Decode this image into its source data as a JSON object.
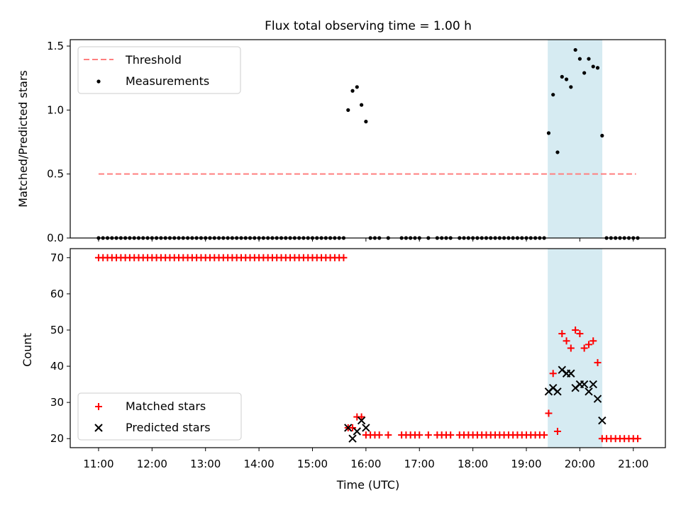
{
  "title": "Flux total observing time = 1.00 h",
  "colors": {
    "threshold": "#ff7f7f",
    "measurement": "#000000",
    "matched": "#ff0000",
    "predicted": "#000000",
    "span_fill": "#add8e6"
  },
  "chart_data": [
    {
      "type": "scatter",
      "panel": "top",
      "ylabel": "Matched/Predicted stars",
      "xlabel": "",
      "ylim": [
        0,
        1.55
      ],
      "yticks": [
        0.0,
        0.5,
        1.0,
        1.5
      ],
      "ytick_labels": [
        "0.0",
        "0.5",
        "1.0",
        "1.5"
      ],
      "xlim_hours": [
        10.47,
        21.6
      ],
      "highlight_span_hours": [
        19.4,
        20.42
      ],
      "legend_position": "upper-left",
      "threshold": {
        "label": "Threshold",
        "value": 0.5,
        "x_range_hours": [
          11.0,
          21.05
        ]
      },
      "measurements": {
        "label": "Measurements",
        "x": [
          11.0,
          11.083,
          11.167,
          11.25,
          11.333,
          11.417,
          11.5,
          11.583,
          11.667,
          11.75,
          11.833,
          11.917,
          12.0,
          12.083,
          12.167,
          12.25,
          12.333,
          12.417,
          12.5,
          12.583,
          12.667,
          12.75,
          12.833,
          12.917,
          13.0,
          13.083,
          13.167,
          13.25,
          13.333,
          13.417,
          13.5,
          13.583,
          13.667,
          13.75,
          13.833,
          13.917,
          14.0,
          14.083,
          14.167,
          14.25,
          14.333,
          14.417,
          14.5,
          14.583,
          14.667,
          14.75,
          14.833,
          14.917,
          15.0,
          15.083,
          15.167,
          15.25,
          15.333,
          15.417,
          15.5,
          15.583,
          15.667,
          15.75,
          15.833,
          15.917,
          16.0,
          16.083,
          16.167,
          16.25,
          16.417,
          16.667,
          16.75,
          16.833,
          16.917,
          17.0,
          17.167,
          17.333,
          17.417,
          17.5,
          17.583,
          17.75,
          17.833,
          17.917,
          18.0,
          18.083,
          18.167,
          18.25,
          18.333,
          18.417,
          18.5,
          18.583,
          18.667,
          18.75,
          18.833,
          18.917,
          19.0,
          19.083,
          19.167,
          19.25,
          19.333,
          19.417,
          19.5,
          19.583,
          19.667,
          19.75,
          19.833,
          19.917,
          20.0,
          20.083,
          20.167,
          20.25,
          20.333,
          20.417,
          20.5,
          20.583,
          20.667,
          20.75,
          20.833,
          20.917,
          21.0,
          21.083
        ],
        "y": [
          0,
          0,
          0,
          0,
          0,
          0,
          0,
          0,
          0,
          0,
          0,
          0,
          0,
          0,
          0,
          0,
          0,
          0,
          0,
          0,
          0,
          0,
          0,
          0,
          0,
          0,
          0,
          0,
          0,
          0,
          0,
          0,
          0,
          0,
          0,
          0,
          0,
          0,
          0,
          0,
          0,
          0,
          0,
          0,
          0,
          0,
          0,
          0,
          0,
          0,
          0,
          0,
          0,
          0,
          0,
          0,
          1.0,
          1.15,
          1.18,
          1.04,
          0.91,
          0,
          0,
          0,
          0,
          0,
          0,
          0,
          0,
          0,
          0,
          0,
          0,
          0,
          0,
          0,
          0,
          0,
          0,
          0,
          0,
          0,
          0,
          0,
          0,
          0,
          0,
          0,
          0,
          0,
          0,
          0,
          0,
          0,
          0,
          0.82,
          1.12,
          0.67,
          1.26,
          1.24,
          1.18,
          1.47,
          1.4,
          1.29,
          1.4,
          1.34,
          1.33,
          0.8,
          0,
          0,
          0,
          0,
          0,
          0,
          0,
          0
        ]
      }
    },
    {
      "type": "scatter",
      "panel": "bottom",
      "ylabel": "Count",
      "xlabel": "Time (UTC)",
      "ylim": [
        17.5,
        72.5
      ],
      "yticks": [
        20,
        30,
        40,
        50,
        60,
        70
      ],
      "ytick_labels": [
        "20",
        "30",
        "40",
        "50",
        "60",
        "70"
      ],
      "xlim_hours": [
        10.47,
        21.6
      ],
      "xticks_hours": [
        11,
        12,
        13,
        14,
        15,
        16,
        17,
        18,
        19,
        20,
        21
      ],
      "xtick_labels": [
        "11:00",
        "12:00",
        "13:00",
        "14:00",
        "15:00",
        "16:00",
        "17:00",
        "18:00",
        "19:00",
        "20:00",
        "21:00"
      ],
      "highlight_span_hours": [
        19.4,
        20.42
      ],
      "legend_position": "lower-left",
      "series": [
        {
          "name": "Matched stars",
          "marker": "plus",
          "x": [
            11.0,
            11.083,
            11.167,
            11.25,
            11.333,
            11.417,
            11.5,
            11.583,
            11.667,
            11.75,
            11.833,
            11.917,
            12.0,
            12.083,
            12.167,
            12.25,
            12.333,
            12.417,
            12.5,
            12.583,
            12.667,
            12.75,
            12.833,
            12.917,
            13.0,
            13.083,
            13.167,
            13.25,
            13.333,
            13.417,
            13.5,
            13.583,
            13.667,
            13.75,
            13.833,
            13.917,
            14.0,
            14.083,
            14.167,
            14.25,
            14.333,
            14.417,
            14.5,
            14.583,
            14.667,
            14.75,
            14.833,
            14.917,
            15.0,
            15.083,
            15.167,
            15.25,
            15.333,
            15.417,
            15.5,
            15.583,
            15.667,
            15.75,
            15.833,
            15.917,
            16.0,
            16.083,
            16.167,
            16.25,
            16.417,
            16.667,
            16.75,
            16.833,
            16.917,
            17.0,
            17.167,
            17.333,
            17.417,
            17.5,
            17.583,
            17.75,
            17.833,
            17.917,
            18.0,
            18.083,
            18.167,
            18.25,
            18.333,
            18.417,
            18.5,
            18.583,
            18.667,
            18.75,
            18.833,
            18.917,
            19.0,
            19.083,
            19.167,
            19.25,
            19.333,
            19.417,
            19.5,
            19.583,
            19.667,
            19.75,
            19.833,
            19.917,
            20.0,
            20.083,
            20.167,
            20.25,
            20.333,
            20.417,
            20.5,
            20.583,
            20.667,
            20.75,
            20.833,
            20.917,
            21.0,
            21.083
          ],
          "y": [
            70,
            70,
            70,
            70,
            70,
            70,
            70,
            70,
            70,
            70,
            70,
            70,
            70,
            70,
            70,
            70,
            70,
            70,
            70,
            70,
            70,
            70,
            70,
            70,
            70,
            70,
            70,
            70,
            70,
            70,
            70,
            70,
            70,
            70,
            70,
            70,
            70,
            70,
            70,
            70,
            70,
            70,
            70,
            70,
            70,
            70,
            70,
            70,
            70,
            70,
            70,
            70,
            70,
            70,
            70,
            70,
            23,
            23,
            26,
            26,
            21,
            21,
            21,
            21,
            21,
            21,
            21,
            21,
            21,
            21,
            21,
            21,
            21,
            21,
            21,
            21,
            21,
            21,
            21,
            21,
            21,
            21,
            21,
            21,
            21,
            21,
            21,
            21,
            21,
            21,
            21,
            21,
            21,
            21,
            21,
            27,
            38,
            22,
            49,
            47,
            45,
            50,
            49,
            45,
            46,
            47,
            41,
            20,
            20,
            20,
            20,
            20,
            20,
            20,
            20,
            20
          ]
        },
        {
          "name": "Predicted stars",
          "marker": "x",
          "x": [
            15.667,
            15.75,
            15.833,
            15.917,
            16.0,
            19.417,
            19.5,
            19.583,
            19.667,
            19.75,
            19.833,
            19.917,
            20.0,
            20.083,
            20.167,
            20.25,
            20.333,
            20.417
          ],
          "y": [
            23,
            20,
            22,
            25,
            23,
            33,
            34,
            33,
            39,
            38,
            38,
            34,
            35,
            35,
            33,
            35,
            31,
            25
          ]
        }
      ]
    }
  ]
}
